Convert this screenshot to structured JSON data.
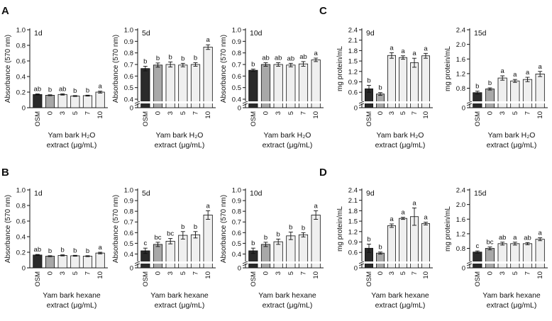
{
  "colors": {
    "osm": "#2a2a2a",
    "c0": "#a8a8a8",
    "dose": "#efefef",
    "axis": "#111111"
  },
  "panel_labels": [
    "A",
    "B",
    "C",
    "D"
  ],
  "chart_data": [
    {
      "id": "A1",
      "panel": "A",
      "type": "bar",
      "title": "1d",
      "ylabel": "Absorbance (570 nm)",
      "xlabel_lines": [
        "Yam bark H₂O",
        "extract (μg/mL)"
      ],
      "categories": [
        "OSM",
        "0",
        "3",
        "5",
        "7",
        "10"
      ],
      "values": [
        0.17,
        0.16,
        0.17,
        0.15,
        0.155,
        0.2
      ],
      "errors": [
        0.007,
        0.006,
        0.008,
        0.006,
        0.006,
        0.012
      ],
      "letters": [
        "ab",
        "b",
        "ab",
        "b",
        "b",
        "a"
      ],
      "ylim": [
        0,
        1.0
      ],
      "yticks": [
        "0",
        "0.2",
        "0.4",
        "0.6",
        "0.8",
        "1.0"
      ],
      "break": false
    },
    {
      "id": "A2",
      "panel": "A",
      "type": "bar",
      "title": "5d",
      "ylabel": "Absorbance (570 nm)",
      "xlabel_lines": [
        "Yam bark H₂O",
        "extract (μg/mL)"
      ],
      "categories": [
        "OSM",
        "0",
        "3",
        "5",
        "7",
        "10"
      ],
      "values": [
        0.665,
        0.695,
        0.7,
        0.695,
        0.7,
        0.85
      ],
      "errors": [
        0.02,
        0.018,
        0.022,
        0.015,
        0.015,
        0.02
      ],
      "letters": [
        "b",
        "b",
        "b",
        "b",
        "b",
        "a"
      ],
      "ylim": [
        0.4,
        1.0
      ],
      "yticks": [
        "0",
        "0.4",
        "0.5",
        "0.6",
        "0.7",
        "0.8",
        "0.9",
        "1.0"
      ],
      "break": true
    },
    {
      "id": "A3",
      "panel": "A",
      "type": "bar",
      "title": "10d",
      "ylabel": "Absorbance (570 nm)",
      "xlabel_lines": [
        "Yam bark H₂O",
        "extract (μg/mL)"
      ],
      "categories": [
        "OSM",
        "0",
        "3",
        "5",
        "7",
        "10"
      ],
      "values": [
        0.65,
        0.7,
        0.7,
        0.695,
        0.705,
        0.74
      ],
      "errors": [
        0.01,
        0.015,
        0.015,
        0.015,
        0.02,
        0.015
      ],
      "letters": [
        "b",
        "ab",
        "ab",
        "ab",
        "ab",
        "a"
      ],
      "ylim": [
        0.4,
        1.0
      ],
      "yticks": [
        "0",
        "0.4",
        "0.5",
        "0.6",
        "0.7",
        "0.8",
        "0.9",
        "1.0"
      ],
      "break": true
    },
    {
      "id": "C1",
      "panel": "C",
      "type": "bar",
      "title": "9d",
      "ylabel": "mg protein/mL",
      "xlabel_lines": [
        "Yam bark H₂O",
        "extract (μg/mL)"
      ],
      "categories": [
        "OSM",
        "0",
        "3",
        "5",
        "7",
        "10"
      ],
      "values": [
        0.7,
        0.55,
        1.66,
        1.6,
        1.45,
        1.65
      ],
      "errors": [
        0.1,
        0.04,
        0.08,
        0.05,
        0.13,
        0.07
      ],
      "letters": [
        "b",
        "b",
        "a",
        "a",
        "a",
        "a"
      ],
      "ylim": [
        0.4,
        2.4
      ],
      "yticks": [
        "0",
        "0.6",
        "0.9",
        "1.2",
        "1.5",
        "1.8",
        "2.1",
        "2.4"
      ],
      "break": true
    },
    {
      "id": "C2",
      "panel": "C",
      "type": "bar",
      "title": "15d",
      "ylabel": "mg protein/mL",
      "xlabel_lines": [
        "Yam bark H₂O",
        "extract (μg/mL)"
      ],
      "categories": [
        "OSM",
        "0",
        "3",
        "5",
        "7",
        "10"
      ],
      "values": [
        0.68,
        0.78,
        1.08,
        1.0,
        1.04,
        1.19
      ],
      "errors": [
        0.04,
        0.03,
        0.06,
        0.04,
        0.06,
        0.07
      ],
      "letters": [
        "b",
        "b",
        "a",
        "a",
        "a",
        "a"
      ],
      "ylim": [
        0.5,
        2.4
      ],
      "yticks": [
        "0",
        "0.8",
        "1.2",
        "1.6",
        "2.0",
        "2.4"
      ],
      "break": true
    },
    {
      "id": "B1",
      "panel": "B",
      "type": "bar",
      "title": "1d",
      "ylabel": "Absorbance (570 nm)",
      "xlabel_lines": [
        "Yam bark hexane",
        "extract (μg/mL)"
      ],
      "categories": [
        "OSM",
        "0",
        "3",
        "5",
        "7",
        "10"
      ],
      "values": [
        0.165,
        0.15,
        0.16,
        0.155,
        0.15,
        0.19
      ],
      "errors": [
        0.007,
        0.006,
        0.007,
        0.006,
        0.006,
        0.01
      ],
      "letters": [
        "ab",
        "b",
        "b",
        "b",
        "b",
        "a"
      ],
      "ylim": [
        0,
        1.0
      ],
      "yticks": [
        "0",
        "0.2",
        "0.4",
        "0.6",
        "0.8",
        "1.0"
      ],
      "break": false
    },
    {
      "id": "B2",
      "panel": "B",
      "type": "bar",
      "title": "5d",
      "ylabel": "Absorbance (570 nm)",
      "xlabel_lines": [
        "Yam bark hexane",
        "extract (μg/mL)"
      ],
      "categories": [
        "OSM",
        "0",
        "3",
        "5",
        "7",
        "10"
      ],
      "values": [
        0.43,
        0.49,
        0.52,
        0.575,
        0.58,
        0.765
      ],
      "errors": [
        0.025,
        0.02,
        0.025,
        0.035,
        0.03,
        0.04
      ],
      "letters": [
        "c",
        "bc",
        "bc",
        "b",
        "b",
        "a"
      ],
      "ylim": [
        0.35,
        1.0
      ],
      "yticks": [
        "0",
        "0.4",
        "0.5",
        "0.6",
        "0.7",
        "0.8",
        "0.9",
        "1.0"
      ],
      "break": true
    },
    {
      "id": "B3",
      "panel": "B",
      "type": "bar",
      "title": "10d",
      "ylabel": "Absorbance (570 nm)",
      "xlabel_lines": [
        "Yam bark hexane",
        "extract (μg/mL)"
      ],
      "categories": [
        "OSM",
        "0",
        "3",
        "5",
        "7",
        "10"
      ],
      "values": [
        0.43,
        0.49,
        0.515,
        0.57,
        0.58,
        0.765
      ],
      "errors": [
        0.025,
        0.02,
        0.025,
        0.035,
        0.02,
        0.04
      ],
      "letters": [
        "b",
        "b",
        "b",
        "b",
        "b",
        "a"
      ],
      "ylim": [
        0.35,
        1.0
      ],
      "yticks": [
        "0",
        "0.4",
        "0.5",
        "0.6",
        "0.7",
        "0.8",
        "0.9",
        "1.0"
      ],
      "break": true
    },
    {
      "id": "D1",
      "panel": "D",
      "type": "bar",
      "title": "9d",
      "ylabel": "mg protein/mL",
      "xlabel_lines": [
        "Yam bark hexane",
        "extract (μg/mL)"
      ],
      "categories": [
        "OSM",
        "0",
        "3",
        "5",
        "7",
        "10"
      ],
      "values": [
        0.72,
        0.58,
        1.37,
        1.58,
        1.63,
        1.43
      ],
      "errors": [
        0.12,
        0.03,
        0.05,
        0.03,
        0.25,
        0.04
      ],
      "letters": [
        "b",
        "b",
        "a",
        "a",
        "a",
        "a"
      ],
      "ylim": [
        0.4,
        2.4
      ],
      "yticks": [
        "0",
        "0.6",
        "0.9",
        "1.2",
        "1.5",
        "1.8",
        "2.1",
        "2.4"
      ],
      "break": true
    },
    {
      "id": "D2",
      "panel": "D",
      "type": "bar",
      "title": "15d",
      "ylabel": "mg protein/mL",
      "xlabel_lines": [
        "Yam bark hexane",
        "extract (μg/mL)"
      ],
      "categories": [
        "OSM",
        "0",
        "3",
        "5",
        "7",
        "10"
      ],
      "values": [
        0.7,
        0.8,
        0.93,
        0.93,
        0.93,
        1.05
      ],
      "errors": [
        0.03,
        0.04,
        0.04,
        0.04,
        0.03,
        0.04
      ],
      "letters": [
        "c",
        "bc",
        "ab",
        "a",
        "ab",
        "a"
      ],
      "ylim": [
        0.5,
        2.4
      ],
      "yticks": [
        "0",
        "0.8",
        "1.2",
        "1.6",
        "2.0",
        "2.4"
      ],
      "break": true
    }
  ]
}
